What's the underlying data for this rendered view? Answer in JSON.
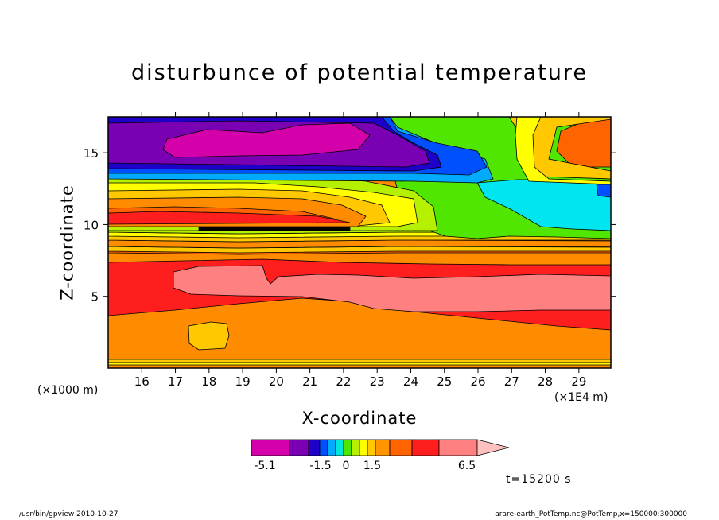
{
  "chart_data": {
    "type": "heatmap",
    "title": "disturbunce of potential temperature",
    "xlabel": "X-coordinate",
    "ylabel": "Z-coordinate",
    "x_unit_left": "(×1000 m)",
    "x_unit_right": "(×1E4 m)",
    "x_ticks": [
      "16",
      "17",
      "18",
      "19",
      "20",
      "21",
      "22",
      "23",
      "24",
      "25",
      "26",
      "27",
      "28",
      "29"
    ],
    "x_tick_values": [
      16,
      17,
      18,
      19,
      20,
      21,
      22,
      23,
      24,
      25,
      26,
      27,
      28,
      29
    ],
    "y_ticks": [
      "5",
      "10",
      "15"
    ],
    "y_tick_values": [
      5,
      10,
      15
    ],
    "xlim": [
      15.0,
      29.95
    ],
    "ylim": [
      0,
      17.5
    ],
    "colorbar": {
      "labels": [
        "-5.1",
        "-1.5",
        "0",
        "1.5",
        "6.5"
      ],
      "colors": [
        "#d400aa",
        "#7a00b4",
        "#1e00c8",
        "#0050ff",
        "#00aaff",
        "#00e6dc",
        "#50e600",
        "#b4f000",
        "#ffff00",
        "#ffc800",
        "#ff9600",
        "#ff6400",
        "#ff1e1e",
        "#ff8080",
        "#ffc0c0"
      ]
    },
    "time_label": "t=15200 s",
    "colors": {
      "magenta": "#d400aa",
      "purple": "#7a00b4",
      "darkblue": "#1e00c8",
      "blue": "#0050ff",
      "skyblue": "#00aaff",
      "cyan": "#00e6f0",
      "green": "#50e600",
      "lime": "#b4f000",
      "yellow": "#ffff00",
      "gold": "#ffc800",
      "orange": "#ff8c00",
      "darkorange": "#ff6400",
      "red": "#ff1e1e",
      "salmon": "#ff8080"
    }
  },
  "footer": {
    "left": "/usr/bin/gpview   2010-10-27",
    "right": "arare-earth_PotTemp.nc@PotTemp,x=150000:300000"
  }
}
